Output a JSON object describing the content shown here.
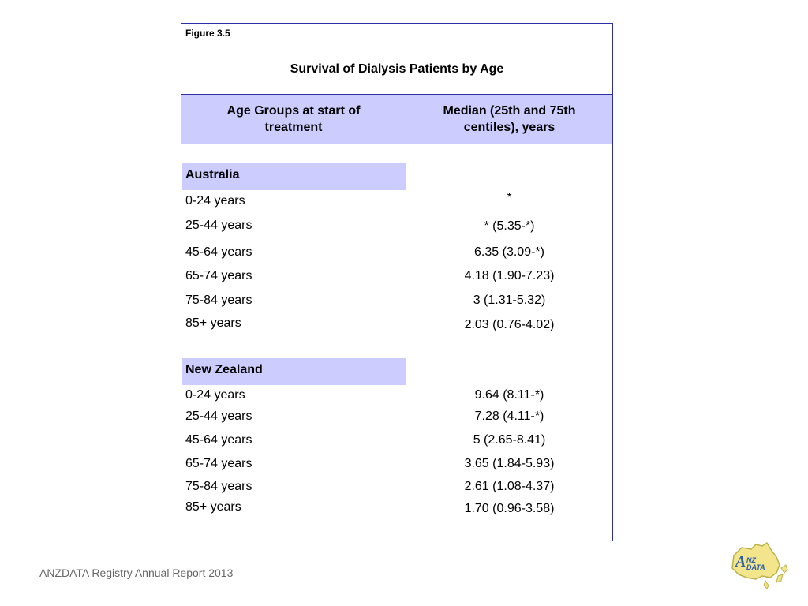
{
  "figure_label": "Figure 3.5",
  "title": "Survival of Dialysis Patients by Age",
  "headers": {
    "age_group": "Age Groups at start of treatment",
    "median": "Median (25th and 75th centiles), years"
  },
  "australia": {
    "label": "Australia",
    "rows": [
      {
        "age": "0-24  years",
        "value": "*"
      },
      {
        "age": "25-44 years",
        "value": "* (5.35-*)"
      },
      {
        "age": "45-64 years",
        "value": "6.35 (3.09-*)"
      },
      {
        "age": "65-74 years",
        "value": "4.18 (1.90-7.23)"
      },
      {
        "age": "75-84 years",
        "value": "3 (1.31-5.32)"
      },
      {
        "age": "85+ years",
        "value": "2.03 (0.76-4.02)"
      }
    ]
  },
  "new_zealand": {
    "label": "New Zealand",
    "rows": [
      {
        "age": "0-24  years",
        "value": "9.64 (8.11-*)"
      },
      {
        "age": "25-44 years",
        "value": "7.28 (4.11-*)"
      },
      {
        "age": "45-64 years",
        "value": "5 (2.65-8.41)"
      },
      {
        "age": "65-74 years",
        "value": "3.65 (1.84-5.93)"
      },
      {
        "age": "75-84 years",
        "value": "2.61 (1.08-4.37)"
      },
      {
        "age": "85+ years",
        "value": "1.70 (0.96-3.58)"
      }
    ]
  },
  "footer": "ANZDATA Registry Annual Report 2013",
  "logo": {
    "text_a": "A",
    "text_nz": "NZ",
    "text_data": "DATA"
  }
}
